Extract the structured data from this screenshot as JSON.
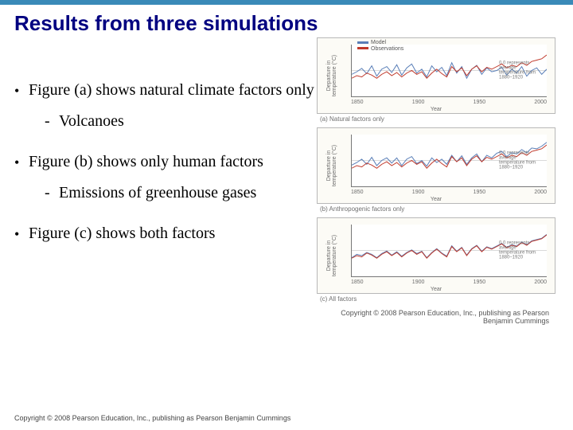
{
  "title": "Results from three simulations",
  "bullets": [
    {
      "text": "Figure (a) shows natural climate factors only",
      "subs": [
        "Volcanoes"
      ]
    },
    {
      "text": "Figure (b) shows only human factors",
      "subs": [
        "Emissions of greenhouse gases"
      ]
    },
    {
      "text": "Figure (c) shows both factors",
      "subs": []
    }
  ],
  "charts": {
    "ylabel": "Departure in\ntemperature (°C)",
    "xlabel": "Year",
    "xticks": [
      "1850",
      "1900",
      "1950",
      "2000"
    ],
    "ylim": [
      -1.0,
      1.0
    ],
    "legend": {
      "model": "Model",
      "obs": "Observations"
    },
    "colors": {
      "model": "#5a7fb8",
      "obs": "#c0392b",
      "grid": "#cccccc",
      "frame_bg": "#fcfbf6",
      "plot_bg": "#ffffff"
    },
    "annotation": "0.0 represents average temperature from 1880–1920",
    "line_width": 1.0,
    "panels": [
      {
        "id": "a",
        "caption": "(a) Natural factors only",
        "show_legend": true,
        "model": [
          -0.15,
          -0.05,
          0.08,
          -0.12,
          0.18,
          -0.22,
          0.05,
          0.15,
          -0.08,
          0.22,
          -0.18,
          0.1,
          0.25,
          -0.1,
          0.05,
          -0.25,
          0.18,
          -0.05,
          0.12,
          -0.2,
          0.3,
          -0.1,
          0.15,
          -0.3,
          0.05,
          0.2,
          -0.15,
          0.1,
          -0.05,
          0.0,
          0.12,
          -0.18,
          0.05,
          -0.1,
          0.15,
          -0.22,
          0.0,
          0.1,
          -0.15,
          0.05
        ],
        "obs": [
          -0.3,
          -0.2,
          -0.25,
          -0.1,
          -0.18,
          -0.3,
          -0.15,
          -0.05,
          -0.2,
          -0.08,
          -0.25,
          -0.1,
          0.0,
          -0.15,
          -0.05,
          -0.3,
          -0.1,
          0.05,
          -0.12,
          -0.25,
          0.15,
          -0.05,
          0.1,
          -0.2,
          0.05,
          0.18,
          -0.05,
          0.12,
          0.05,
          0.15,
          0.25,
          0.1,
          0.2,
          0.15,
          0.3,
          0.2,
          0.35,
          0.4,
          0.45,
          0.6
        ]
      },
      {
        "id": "b",
        "caption": "(b) Anthropogenic factors only",
        "show_legend": false,
        "model": [
          -0.18,
          -0.08,
          0.05,
          -0.15,
          0.12,
          -0.2,
          0.0,
          0.1,
          -0.1,
          0.1,
          -0.2,
          0.05,
          0.15,
          -0.12,
          0.0,
          -0.22,
          0.1,
          -0.08,
          0.05,
          -0.15,
          0.2,
          -0.05,
          0.18,
          -0.15,
          0.1,
          0.25,
          -0.05,
          0.2,
          0.1,
          0.28,
          0.35,
          0.15,
          0.3,
          0.25,
          0.42,
          0.3,
          0.48,
          0.45,
          0.55,
          0.7
        ],
        "obs": [
          -0.3,
          -0.2,
          -0.25,
          -0.1,
          -0.18,
          -0.3,
          -0.15,
          -0.05,
          -0.2,
          -0.08,
          -0.25,
          -0.1,
          0.0,
          -0.15,
          -0.05,
          -0.3,
          -0.1,
          0.05,
          -0.12,
          -0.25,
          0.15,
          -0.05,
          0.1,
          -0.2,
          0.05,
          0.18,
          -0.05,
          0.12,
          0.05,
          0.15,
          0.25,
          0.1,
          0.2,
          0.15,
          0.3,
          0.2,
          0.35,
          0.4,
          0.45,
          0.6
        ]
      },
      {
        "id": "c",
        "caption": "(c) All factors",
        "show_legend": false,
        "model": [
          -0.28,
          -0.15,
          -0.2,
          -0.08,
          -0.15,
          -0.28,
          -0.12,
          -0.02,
          -0.18,
          -0.05,
          -0.22,
          -0.08,
          0.02,
          -0.12,
          -0.03,
          -0.28,
          -0.08,
          0.07,
          -0.1,
          -0.22,
          0.18,
          -0.03,
          0.12,
          -0.18,
          0.07,
          0.2,
          -0.03,
          0.14,
          0.07,
          0.17,
          0.27,
          0.12,
          0.22,
          0.17,
          0.32,
          0.22,
          0.37,
          0.42,
          0.47,
          0.62
        ],
        "obs": [
          -0.3,
          -0.2,
          -0.25,
          -0.1,
          -0.18,
          -0.3,
          -0.15,
          -0.05,
          -0.2,
          -0.08,
          -0.25,
          -0.1,
          0.0,
          -0.15,
          -0.05,
          -0.3,
          -0.1,
          0.05,
          -0.12,
          -0.25,
          0.15,
          -0.05,
          0.1,
          -0.2,
          0.05,
          0.18,
          -0.05,
          0.12,
          0.05,
          0.15,
          0.25,
          0.1,
          0.2,
          0.15,
          0.3,
          0.2,
          0.35,
          0.4,
          0.45,
          0.6
        ]
      }
    ]
  },
  "figure_copyright": "Copyright © 2008 Pearson Education, Inc., publishing as Pearson Benjamin Cummings",
  "footer": "Copyright © 2008 Pearson Education, Inc., publishing as Pearson Benjamin Cummings"
}
